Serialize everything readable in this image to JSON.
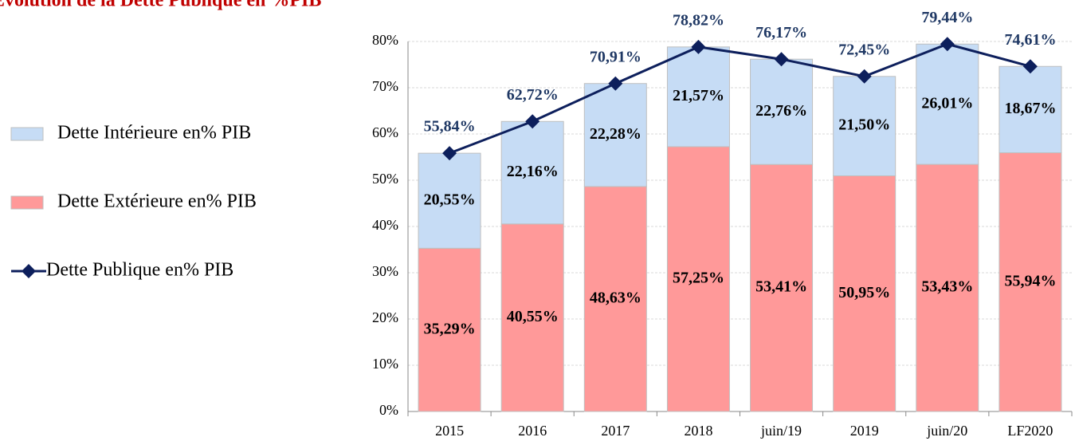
{
  "chart_data": {
    "type": "stacked_bar_line",
    "title": "Evolution de la Dette Publique en %PIB",
    "categories": [
      "2015",
      "2016",
      "2017",
      "2018",
      "juin/19",
      "2019",
      "juin/20",
      "LF2020"
    ],
    "series": [
      {
        "name": "Dette Extérieure en% PIB",
        "color": "#ff9999",
        "type": "bar",
        "values": [
          35.29,
          40.55,
          48.63,
          57.25,
          53.41,
          50.95,
          53.43,
          55.94
        ],
        "value_labels": [
          "35,29%",
          "40,55%",
          "48,63%",
          "57,25%",
          "53,41%",
          "50,95%",
          "53,43%",
          "55,94%"
        ]
      },
      {
        "name": "Dette Intérieure en% PIB",
        "color": "#c6dcf5",
        "type": "bar",
        "values": [
          20.55,
          22.16,
          22.28,
          21.57,
          22.76,
          21.5,
          26.01,
          18.67
        ],
        "value_labels": [
          "20,55%",
          "22,16%",
          "22,28%",
          "21,57%",
          "22,76%",
          "21,50%",
          "26,01%",
          "18,67%"
        ]
      },
      {
        "name": "Dette Publique en% PIB",
        "color": "#0d1f5c",
        "type": "line",
        "values": [
          55.84,
          62.72,
          70.91,
          78.82,
          76.17,
          72.45,
          79.44,
          74.61
        ],
        "value_labels": [
          "55,84%",
          "62,72%",
          "70,91%",
          "78,82%",
          "76,17%",
          "72,45%",
          "79,44%",
          "74,61%"
        ]
      }
    ],
    "ylim": [
      0,
      80
    ],
    "yticks": [
      {
        "value": 0,
        "label": "0%"
      },
      {
        "value": 10,
        "label": "10%"
      },
      {
        "value": 20,
        "label": "20%"
      },
      {
        "value": 30,
        "label": "30%"
      },
      {
        "value": 40,
        "label": "40%"
      },
      {
        "value": 50,
        "label": "50%"
      },
      {
        "value": 60,
        "label": "60%"
      },
      {
        "value": 70,
        "label": "70%"
      },
      {
        "value": 80,
        "label": "80%"
      }
    ],
    "grid": true,
    "legend": "left"
  }
}
